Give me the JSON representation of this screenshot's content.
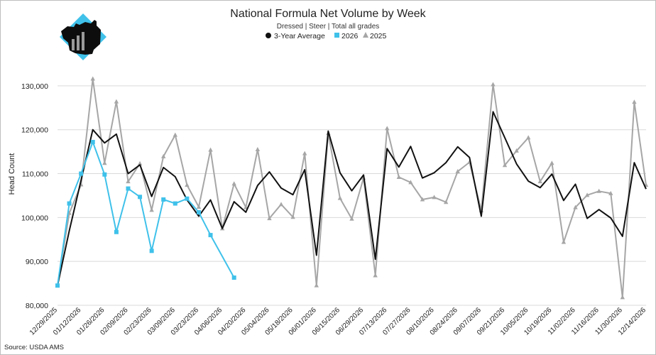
{
  "chart_data": {
    "type": "line",
    "title": "National Formula Net Volume by Week",
    "subtitle": "Dressed | Steer | Total all grades",
    "ylabel": "Head Count",
    "source": "Source: USDA AMS",
    "ylim": [
      80000,
      135000
    ],
    "yticks": [
      80000,
      90000,
      100000,
      110000,
      120000,
      130000
    ],
    "ytick_labels": [
      "80,000",
      "90,000",
      "100,000",
      "110,000",
      "120,000",
      "130,000"
    ],
    "x_tick_labels": [
      "12/29/2025",
      "01/12/2026",
      "01/26/2026",
      "02/09/2026",
      "02/23/2026",
      "03/09/2026",
      "03/23/2026",
      "04/06/2026",
      "04/20/2026",
      "05/04/2026",
      "05/18/2026",
      "06/01/2026",
      "06/15/2026",
      "06/29/2026",
      "07/13/2026",
      "07/27/2026",
      "08/10/2026",
      "08/24/2026",
      "09/07/2026",
      "09/21/2026",
      "10/05/2026",
      "10/19/2026",
      "11/02/2026",
      "11/16/2026",
      "11/30/2026",
      "12/14/2026"
    ],
    "legend_position": "top-center",
    "grid": "horizontal",
    "series": [
      {
        "name": "3-Year Average",
        "color": "#111111",
        "marker": "circle",
        "values": [
          84500,
          97000,
          108500,
          120000,
          117000,
          119000,
          110000,
          112000,
          104800,
          111400,
          109300,
          104000,
          100300,
          104000,
          97500,
          103600,
          101200,
          107300,
          110400,
          106700,
          105200,
          110900,
          91400,
          119700,
          110200,
          106100,
          109700,
          90500,
          115700,
          111500,
          116200,
          109000,
          110200,
          112500,
          116100,
          113700,
          100300,
          124100,
          118200,
          112200,
          108300,
          106800,
          109900,
          103900,
          107600,
          99800,
          101800,
          99900,
          95700,
          112500,
          106500
        ]
      },
      {
        "name": "2026",
        "color": "#3fc1ea",
        "marker": "square",
        "values": [
          84500,
          103200,
          110000,
          117200,
          109800,
          96700,
          106600,
          104700,
          92400,
          104100,
          103200,
          104300,
          101200,
          96000,
          null,
          86300
        ]
      },
      {
        "name": "2025",
        "color": "#a6a6a6",
        "marker": "triangle",
        "values": [
          84500,
          101000,
          107500,
          131600,
          112400,
          126400,
          108200,
          112300,
          101700,
          113900,
          118800,
          107400,
          102400,
          115400,
          97500,
          107700,
          102300,
          115500,
          99800,
          103000,
          100100,
          114600,
          84500,
          119200,
          104400,
          99700,
          109000,
          86800,
          120300,
          109200,
          108000,
          104100,
          104600,
          103500,
          110500,
          112600,
          101600,
          130300,
          111900,
          115200,
          118200,
          108200,
          112400,
          94400,
          102300,
          105100,
          106000,
          105500,
          81800,
          126300,
          107400
        ]
      }
    ]
  },
  "logo": {
    "name": "cattle-logo",
    "colors": [
      "#3fc1ea",
      "#0d0d0d",
      "#9a9a9a"
    ]
  }
}
